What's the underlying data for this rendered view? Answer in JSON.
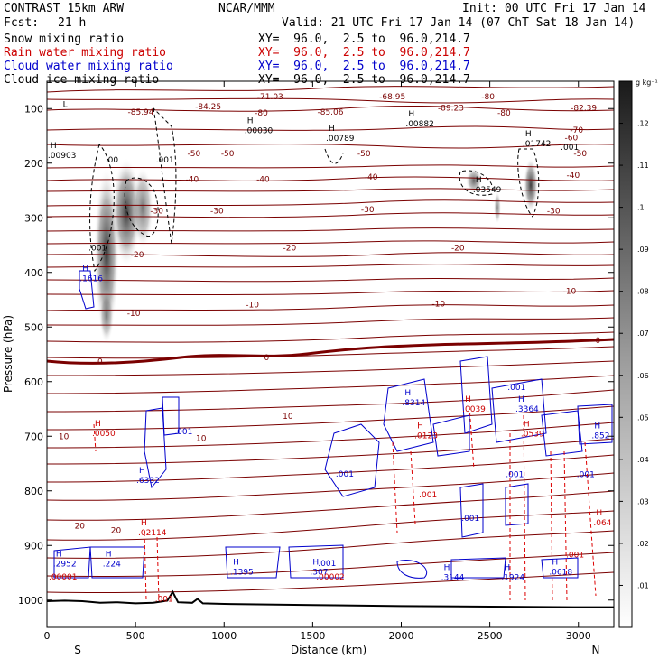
{
  "header": {
    "model": "CONTRAST 15km ARW",
    "org": "NCAR/MMM",
    "init": "Init: 00 UTC Fri 17 Jan 14",
    "fcst_label": "Fcst:",
    "fcst_value": "21 h",
    "valid": "Valid: 21 UTC Fri 17 Jan 14 (07 ChT Sat 18 Jan 14)"
  },
  "fields": [
    {
      "name": "Snow mixing ratio",
      "xy": "XY=  96.0,  2.5 to  96.0,214.7",
      "color": "#000000"
    },
    {
      "name": "Rain water mixing ratio",
      "xy": "XY=  96.0,  2.5 to  96.0,214.7",
      "color": "#cc0000"
    },
    {
      "name": "Cloud water mixing ratio",
      "xy": "XY=  96.0,  2.5 to  96.0,214.7",
      "color": "#0000cc"
    },
    {
      "name": "Cloud ice mixing ratio",
      "xy": "XY=  96.0,  2.5 to  96.0,214.7",
      "color": "#000000"
    }
  ],
  "chart_data": {
    "type": "heatmap",
    "xlabel": "Distance (km)",
    "ylabel": "Pressure (hPa)",
    "x_ticks": [
      0,
      500,
      1000,
      1500,
      2000,
      2500,
      3000
    ],
    "y_ticks": [
      100,
      200,
      300,
      400,
      500,
      600,
      700,
      800,
      900,
      1000
    ],
    "xlim": [
      0,
      3200
    ],
    "ylim": [
      1050,
      50
    ],
    "left_end_label": "S",
    "right_end_label": "N",
    "colorbar": {
      "unit": "g kg⁻¹",
      "ticks": [
        ".01",
        ".02",
        ".03",
        ".04",
        ".05",
        ".06",
        ".07",
        ".08",
        ".09",
        ".1",
        ".11",
        ".12"
      ]
    },
    "temperature_labels": [
      {
        "text": "-71.03",
        "x": 1260,
        "p": 83
      },
      {
        "text": "-68.95",
        "x": 1950,
        "p": 83
      },
      {
        "text": "-80",
        "x": 2490,
        "p": 83
      },
      {
        "text": "-84.25",
        "x": 910,
        "p": 101
      },
      {
        "text": "-85.94",
        "x": 530,
        "p": 111
      },
      {
        "text": "-85.06",
        "x": 1600,
        "p": 111
      },
      {
        "text": "-89.23",
        "x": 2280,
        "p": 104
      },
      {
        "text": "-82.39",
        "x": 3030,
        "p": 104
      },
      {
        "text": "-80",
        "x": 1210,
        "p": 113
      },
      {
        "text": "-80",
        "x": 2580,
        "p": 113
      },
      {
        "text": "-70",
        "x": 2990,
        "p": 144
      },
      {
        "text": "-60",
        "x": 2960,
        "p": 158
      },
      {
        "text": "-50",
        "x": 830,
        "p": 187
      },
      {
        "text": "-50",
        "x": 1020,
        "p": 187
      },
      {
        "text": "-50",
        "x": 1790,
        "p": 187
      },
      {
        "text": "-50",
        "x": 3010,
        "p": 187
      },
      {
        "text": "-40",
        "x": 820,
        "p": 234
      },
      {
        "text": "-40",
        "x": 1220,
        "p": 234
      },
      {
        "text": "-40",
        "x": 1830,
        "p": 230
      },
      {
        "text": "-40",
        "x": 2970,
        "p": 227
      },
      {
        "text": "-30",
        "x": 620,
        "p": 292
      },
      {
        "text": "-30",
        "x": 960,
        "p": 292
      },
      {
        "text": "-30",
        "x": 1810,
        "p": 290
      },
      {
        "text": "-30",
        "x": 2860,
        "p": 292
      },
      {
        "text": "-20",
        "x": 510,
        "p": 372
      },
      {
        "text": "-20",
        "x": 1370,
        "p": 360
      },
      {
        "text": "-20",
        "x": 2320,
        "p": 360
      },
      {
        "text": "-10",
        "x": 490,
        "p": 480
      },
      {
        "text": "-10",
        "x": 1160,
        "p": 464
      },
      {
        "text": "-10",
        "x": 2210,
        "p": 462
      },
      {
        "text": "-10",
        "x": 2950,
        "p": 439
      },
      {
        "text": "0",
        "x": 300,
        "p": 568
      },
      {
        "text": "0",
        "x": 1240,
        "p": 561
      },
      {
        "text": "0",
        "x": 3110,
        "p": 529
      },
      {
        "text": "10",
        "x": 95,
        "p": 705
      },
      {
        "text": "10",
        "x": 870,
        "p": 709
      },
      {
        "text": "10",
        "x": 1360,
        "p": 668
      },
      {
        "text": "20",
        "x": 185,
        "p": 869
      },
      {
        "text": "20",
        "x": 390,
        "p": 877
      }
    ],
    "h_markers": [
      {
        "text": "H",
        "value": ".00030",
        "x": 1130,
        "p": 142,
        "series": "snow"
      },
      {
        "text": "H",
        "value": ".00789",
        "x": 1590,
        "p": 156,
        "series": "snow"
      },
      {
        "text": "H",
        "value": ".00882",
        "x": 2040,
        "p": 129,
        "series": "snow"
      },
      {
        "text": "H",
        "value": ".01742",
        "x": 2700,
        "p": 166,
        "series": "snow"
      },
      {
        "text": "H",
        "value": ".00903",
        "x": 20,
        "p": 187,
        "series": "snow"
      },
      {
        "text": "H",
        "value": ".03549",
        "x": 2420,
        "p": 250,
        "series": "snow"
      },
      {
        "text": "H",
        "value": ".1616",
        "x": 200,
        "p": 413,
        "series": "cloud"
      },
      {
        "text": "H",
        "value": ".0050",
        "x": 270,
        "p": 696,
        "series": "rain"
      },
      {
        "text": "H",
        "value": ".6332",
        "x": 520,
        "p": 782,
        "series": "cloud"
      },
      {
        "text": "H",
        "value": ".02114",
        "x": 530,
        "p": 878,
        "series": "rain"
      },
      {
        "text": "H",
        "value": ".8314",
        "x": 2020,
        "p": 640,
        "series": "cloud"
      },
      {
        "text": "H",
        "value": ".0123",
        "x": 2090,
        "p": 700,
        "series": "rain"
      },
      {
        "text": "H",
        "value": ".0039",
        "x": 2360,
        "p": 652,
        "series": "rain"
      },
      {
        "text": "H",
        "value": ".3364",
        "x": 2660,
        "p": 652,
        "series": "cloud"
      },
      {
        "text": "H",
        "value": ".0539",
        "x": 2690,
        "p": 697,
        "series": "rain"
      },
      {
        "text": "H",
        "value": ".852",
        "x": 3090,
        "p": 700,
        "series": "cloud"
      },
      {
        "text": "H",
        "value": ".064",
        "x": 3100,
        "p": 860,
        "series": "rain"
      },
      {
        "text": "H",
        "value": ".2952",
        "x": 50,
        "p": 935,
        "series": "cloud"
      },
      {
        "text": "H",
        "value": ".224",
        "x": 330,
        "p": 935,
        "series": "cloud"
      },
      {
        "text": "H",
        "value": ".1395",
        "x": 1050,
        "p": 950,
        "series": "cloud"
      },
      {
        "text": "H",
        "value": ".307",
        "x": 1500,
        "p": 950,
        "series": "cloud"
      },
      {
        "text": "H",
        "value": ".3144",
        "x": 2240,
        "p": 960,
        "series": "cloud"
      },
      {
        "text": "H",
        "value": ".1924",
        "x": 2580,
        "p": 960,
        "series": "cloud"
      },
      {
        "text": "H",
        "value": ".0618",
        "x": 2850,
        "p": 950,
        "series": "cloud"
      }
    ],
    "other_labels": [
      {
        "text": ".001",
        "x": 235,
        "p": 360,
        "color": "#000000"
      },
      {
        "text": ".001",
        "x": 615,
        "p": 199,
        "color": "#000000"
      },
      {
        "text": ".00",
        "x": 330,
        "p": 199,
        "color": "#000000"
      },
      {
        "text": ".001",
        "x": 2900,
        "p": 176,
        "color": "#000000"
      },
      {
        "text": ".001",
        "x": 720,
        "p": 696,
        "color": "#0000cc"
      },
      {
        "text": ".001",
        "x": 1530,
        "p": 938,
        "color": "#0000cc"
      },
      {
        "text": ".001",
        "x": 1630,
        "p": 774,
        "color": "#0000cc"
      },
      {
        "text": ".001",
        "x": 2600,
        "p": 615,
        "color": "#0000cc"
      },
      {
        "text": ".001",
        "x": 2590,
        "p": 775,
        "color": "#0000cc"
      },
      {
        "text": ".001",
        "x": 2990,
        "p": 775,
        "color": "#0000cc"
      },
      {
        "text": ".001",
        "x": 2340,
        "p": 855,
        "color": "#0000cc"
      },
      {
        "text": ".001",
        "x": 2100,
        "p": 812,
        "color": "#cc0000"
      },
      {
        "text": ".001",
        "x": 610,
        "p": 1003,
        "color": "#cc0000"
      },
      {
        "text": ".001",
        "x": 2930,
        "p": 922,
        "color": "#cc0000"
      },
      {
        "text": ".00001",
        "x": 10,
        "p": 962,
        "color": "#cc0000"
      },
      {
        "text": ".00002",
        "x": 1520,
        "p": 962,
        "color": "#cc0000"
      },
      {
        "text": "L",
        "x": 90,
        "p": 97,
        "color": "#000000"
      }
    ]
  }
}
